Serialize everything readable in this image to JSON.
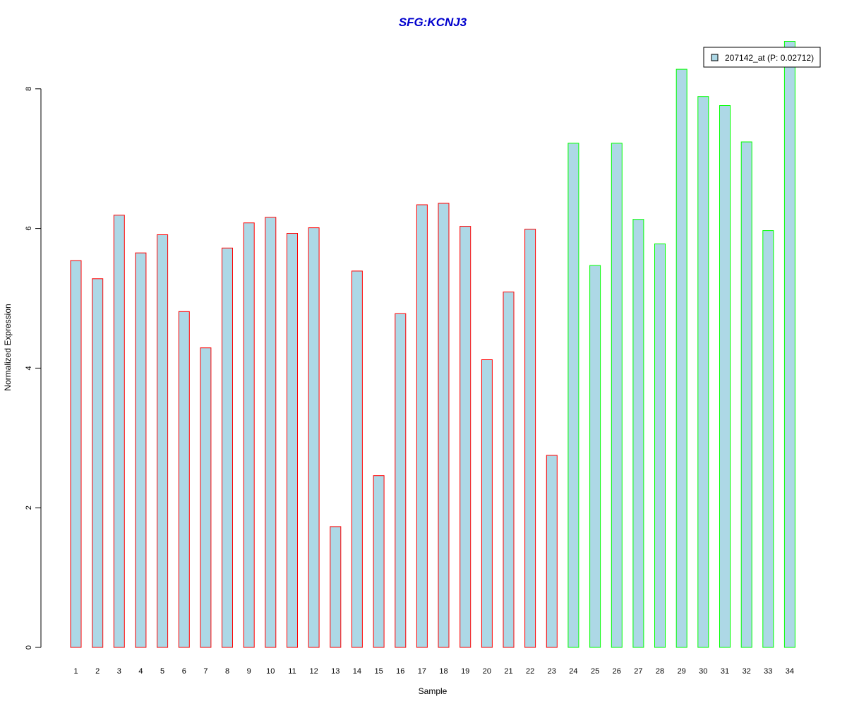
{
  "chart_data": {
    "type": "bar",
    "title": "SFG:KCNJ3",
    "xlabel": "Sample",
    "ylabel": "Normalized Expression",
    "ylim": [
      0,
      8.7
    ],
    "yticks": [
      0,
      2,
      4,
      6,
      8
    ],
    "grid": false,
    "legend_position": "top-right",
    "categories": [
      "1",
      "2",
      "3",
      "4",
      "5",
      "6",
      "7",
      "8",
      "9",
      "10",
      "11",
      "12",
      "13",
      "14",
      "15",
      "16",
      "17",
      "18",
      "19",
      "20",
      "21",
      "22",
      "23",
      "24",
      "25",
      "26",
      "27",
      "28",
      "29",
      "30",
      "31",
      "32",
      "33",
      "34"
    ],
    "series": [
      {
        "name": "207142_at (P: 0.02712)",
        "values": [
          5.54,
          5.28,
          6.19,
          5.65,
          5.91,
          4.81,
          4.29,
          5.72,
          6.08,
          6.16,
          5.93,
          6.01,
          1.73,
          5.39,
          2.46,
          4.78,
          6.34,
          6.36,
          6.03,
          4.12,
          5.09,
          5.99,
          2.75,
          7.22,
          5.47,
          7.22,
          6.13,
          5.78,
          8.28,
          7.89,
          7.76,
          7.24,
          5.97,
          8.68
        ]
      }
    ],
    "group_of_sample": [
      0,
      0,
      0,
      0,
      0,
      0,
      0,
      0,
      0,
      0,
      0,
      0,
      0,
      0,
      0,
      0,
      0,
      0,
      0,
      0,
      0,
      0,
      0,
      1,
      1,
      1,
      1,
      1,
      1,
      1,
      1,
      1,
      1,
      1
    ]
  },
  "colors": {
    "bar_fill": "#add8e6",
    "group_borders": [
      "#ff0000",
      "#00ff00"
    ],
    "title": "#0000cd",
    "legend_border": "#000000"
  }
}
